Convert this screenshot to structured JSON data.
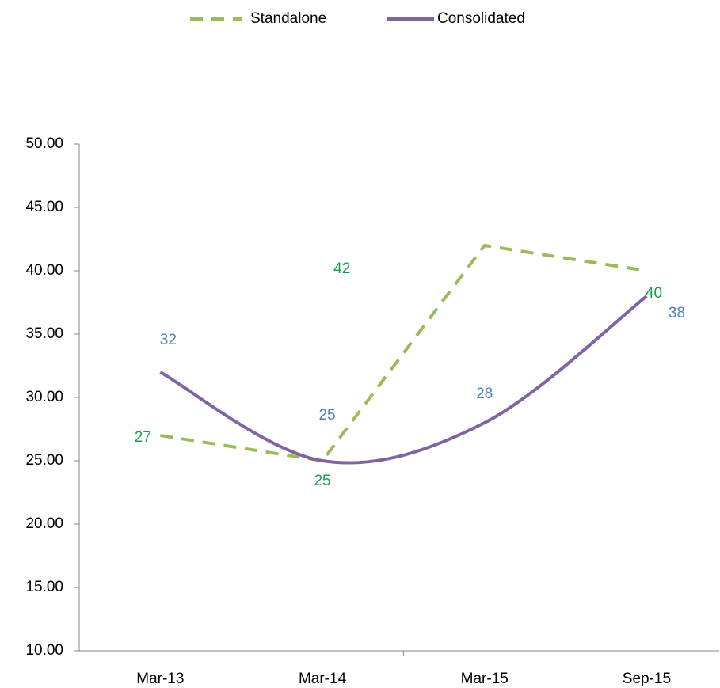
{
  "chart_data": {
    "type": "line",
    "categories": [
      "Mar-13",
      "Mar-14",
      "Mar-15",
      "Sep-15"
    ],
    "series": [
      {
        "name": "Standalone",
        "color": "#9bbb59",
        "label_color": "#1aa04a",
        "dashed": true,
        "smooth": false,
        "values": [
          27,
          25,
          42,
          40
        ]
      },
      {
        "name": "Consolidated",
        "color": "#8064a2",
        "label_color": "#4f81bd",
        "dashed": false,
        "smooth": true,
        "values": [
          32,
          25,
          28,
          38
        ]
      }
    ],
    "ylim": [
      10,
      50
    ],
    "yticks": [
      {
        "value": 10,
        "label": "10.00"
      },
      {
        "value": 15,
        "label": "15.00"
      },
      {
        "value": 20,
        "label": "20.00"
      },
      {
        "value": 25,
        "label": "25.00"
      },
      {
        "value": 30,
        "label": "30.00"
      },
      {
        "value": 35,
        "label": "35.00"
      },
      {
        "value": 40,
        "label": "40.00"
      },
      {
        "value": 45,
        "label": "45.00"
      },
      {
        "value": 50,
        "label": "50.00"
      }
    ],
    "legend": "top"
  }
}
